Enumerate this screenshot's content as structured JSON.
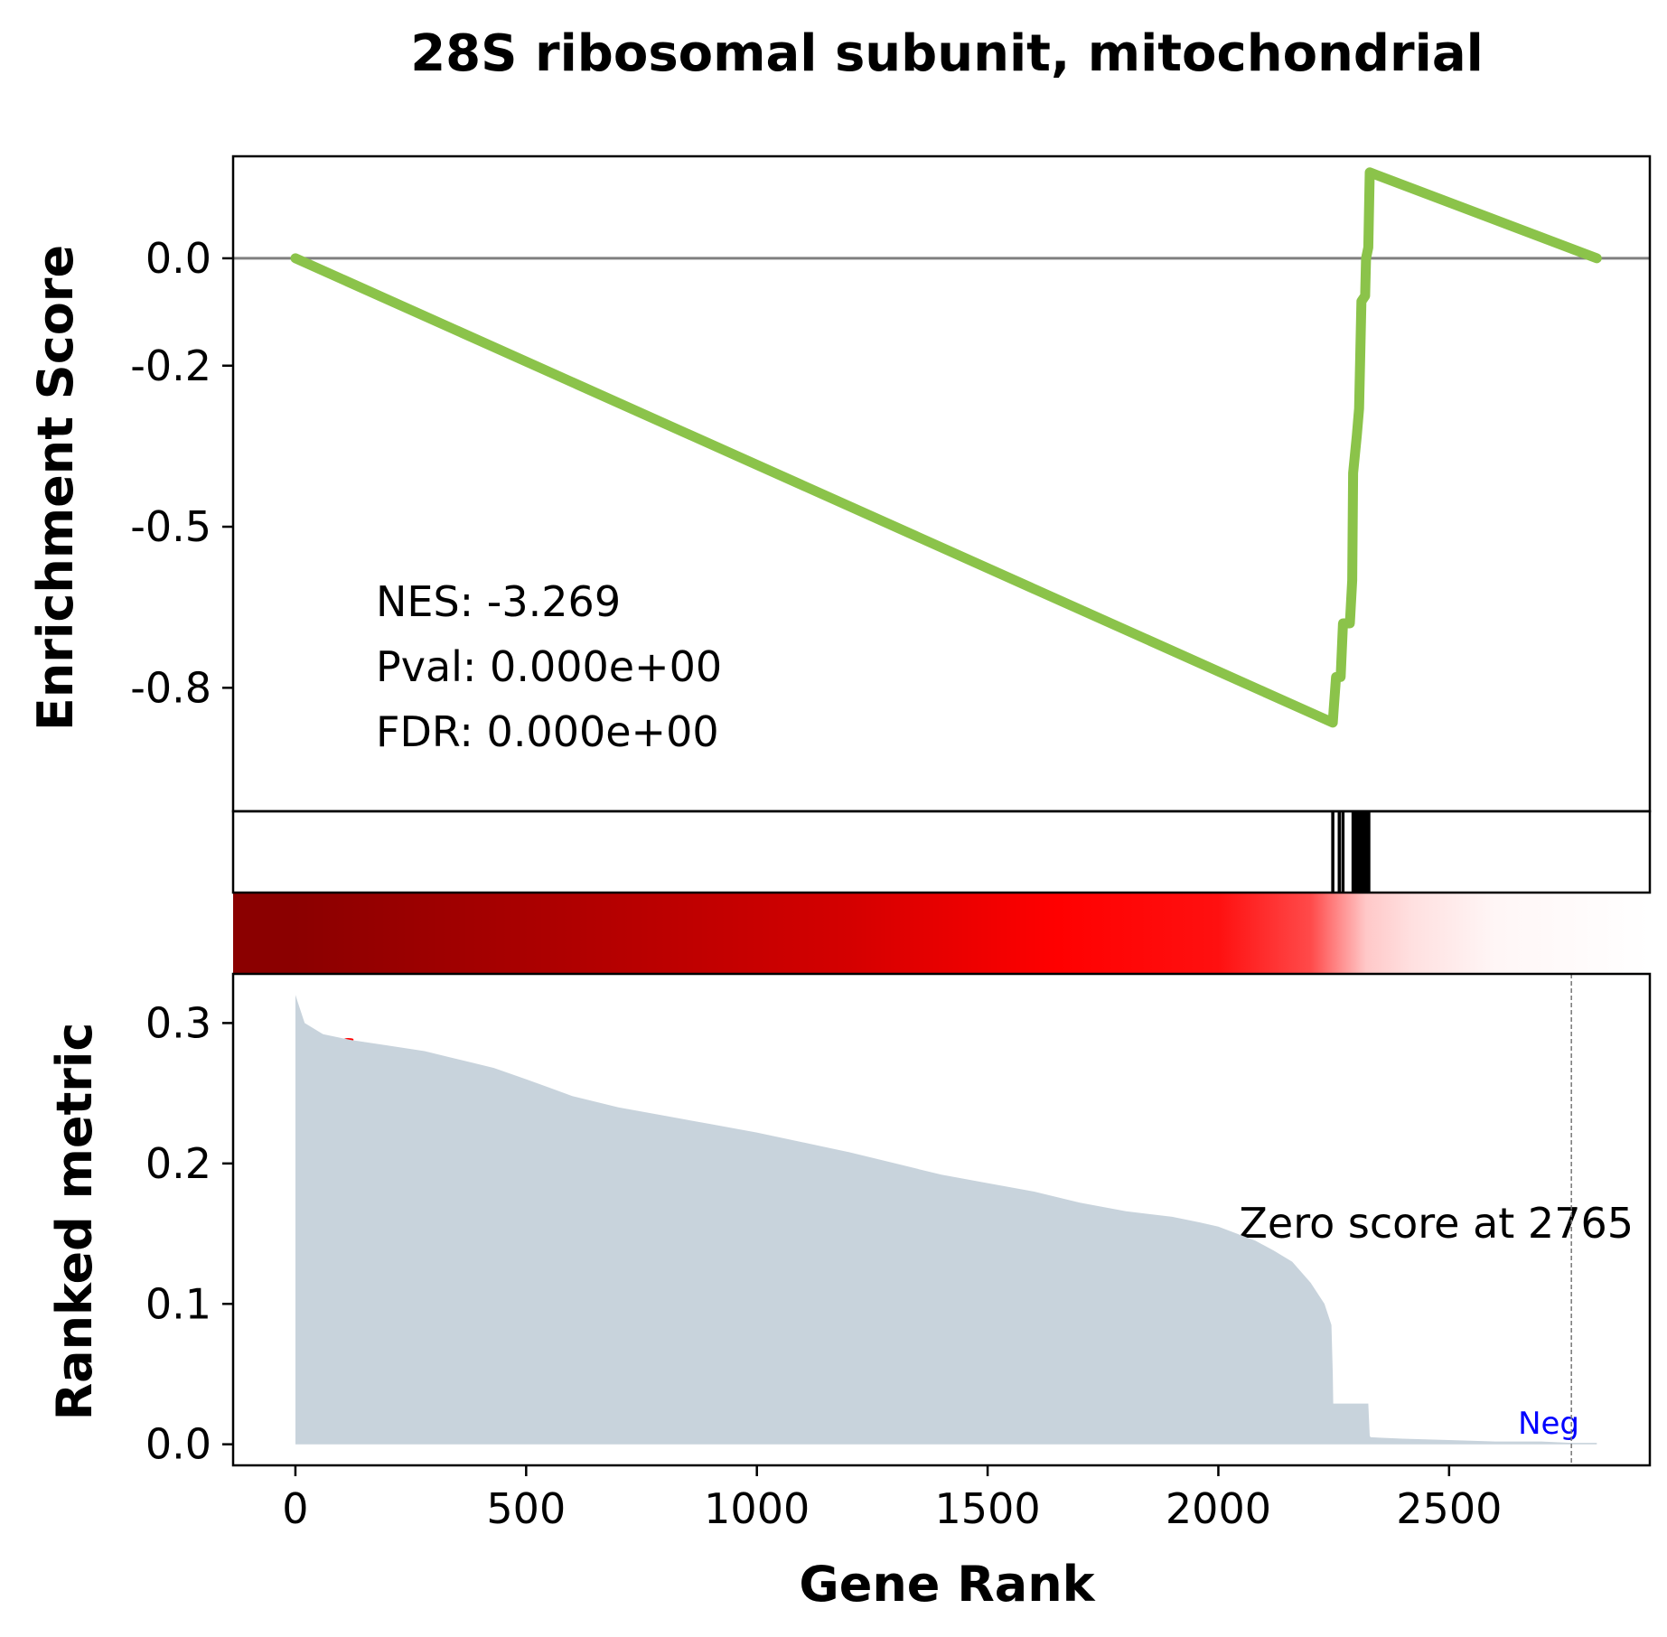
{
  "chart_data": {
    "type": "line",
    "title": "28S ribosomal subunit, mitochondrial",
    "xlabel": "Gene Rank",
    "colors": {
      "es_line": "#8bc34a",
      "zero_line": "#808080",
      "ranked_fill": "#c8d3dc",
      "pos_label": "#ff0000",
      "neg_label": "#0000ff",
      "heat_dark": "#8b0000",
      "heat_mid": "#ff0000",
      "heat_light": "#ffffff"
    },
    "x_ticks": [
      0,
      500,
      1000,
      1500,
      2000,
      2500
    ],
    "xlim": [
      -135,
      2935
    ],
    "enrichment_panel": {
      "ylabel": "Enrichment Score",
      "ylim": [
        -1.03,
        0.19
      ],
      "y_ticks": [
        0.0,
        -0.2,
        -0.5,
        -0.8
      ],
      "y_tick_labels": [
        "0.0",
        "-0.2",
        "-0.5",
        "-0.8"
      ],
      "zero_line": 0.0,
      "series": [
        {
          "x": [
            0,
            2248,
            2250,
            2255,
            2265,
            2270,
            2285,
            2290,
            2292,
            2300,
            2305,
            2310,
            2318,
            2320,
            2325,
            2328,
            2820
          ],
          "y": [
            0.0,
            -0.865,
            -0.84,
            -0.78,
            -0.78,
            -0.68,
            -0.68,
            -0.6,
            -0.4,
            -0.33,
            -0.28,
            -0.08,
            -0.07,
            0.0,
            0.02,
            0.16,
            0.0
          ]
        }
      ],
      "stats": {
        "nes": "NES: -3.269",
        "pval": "Pval: 0.000e+00",
        "fdr": "FDR: 0.000e+00"
      }
    },
    "hits_panel": {
      "positions": [
        2248,
        2262,
        2270,
        2292,
        2296,
        2300,
        2305,
        2310,
        2315,
        2320,
        2326
      ]
    },
    "heatmap_panel": {
      "stops": [
        {
          "rank": 0,
          "color": "#8b0000"
        },
        {
          "rank": 1200,
          "color": "#d40000"
        },
        {
          "rank": 1650,
          "color": "#ff0000"
        },
        {
          "rank": 2000,
          "color": "#ff1010"
        },
        {
          "rank": 2200,
          "color": "#ff4a4a"
        },
        {
          "rank": 2320,
          "color": "#ffc8c8"
        },
        {
          "rank": 2420,
          "color": "#ffe0e0"
        },
        {
          "rank": 2600,
          "color": "#fff6f6"
        },
        {
          "rank": 2935,
          "color": "#ffffff"
        }
      ]
    },
    "ranked_panel": {
      "ylabel": "Ranked metric",
      "ylim": [
        -0.015,
        0.335
      ],
      "y_ticks": [
        0.0,
        0.1,
        0.2,
        0.3
      ],
      "y_tick_labels": [
        "0.0",
        "0.1",
        "0.2",
        "0.3"
      ],
      "x": [
        0,
        5,
        20,
        60,
        120,
        200,
        280,
        330,
        380,
        430,
        500,
        550,
        600,
        700,
        800,
        900,
        1000,
        1100,
        1200,
        1300,
        1400,
        1500,
        1600,
        1700,
        1800,
        1900,
        1960,
        2000,
        2040,
        2080,
        2120,
        2160,
        2200,
        2230,
        2245,
        2248,
        2249,
        2250,
        2325,
        2328,
        2330,
        2400,
        2500,
        2600,
        2700,
        2765,
        2820
      ],
      "values": [
        0.32,
        0.315,
        0.3,
        0.292,
        0.288,
        0.284,
        0.28,
        0.276,
        0.272,
        0.268,
        0.26,
        0.254,
        0.248,
        0.24,
        0.234,
        0.228,
        0.222,
        0.215,
        0.208,
        0.2,
        0.192,
        0.186,
        0.18,
        0.172,
        0.166,
        0.162,
        0.158,
        0.155,
        0.15,
        0.145,
        0.138,
        0.13,
        0.115,
        0.1,
        0.085,
        0.05,
        0.029,
        0.029,
        0.029,
        0.006,
        0.005,
        0.004,
        0.003,
        0.002,
        0.002,
        0.001,
        0.001
      ],
      "pos_label": "Pos",
      "neg_label": "Neg",
      "zero_cross_rank": 2765,
      "zero_cross_text": "Zero score at 2765"
    }
  }
}
